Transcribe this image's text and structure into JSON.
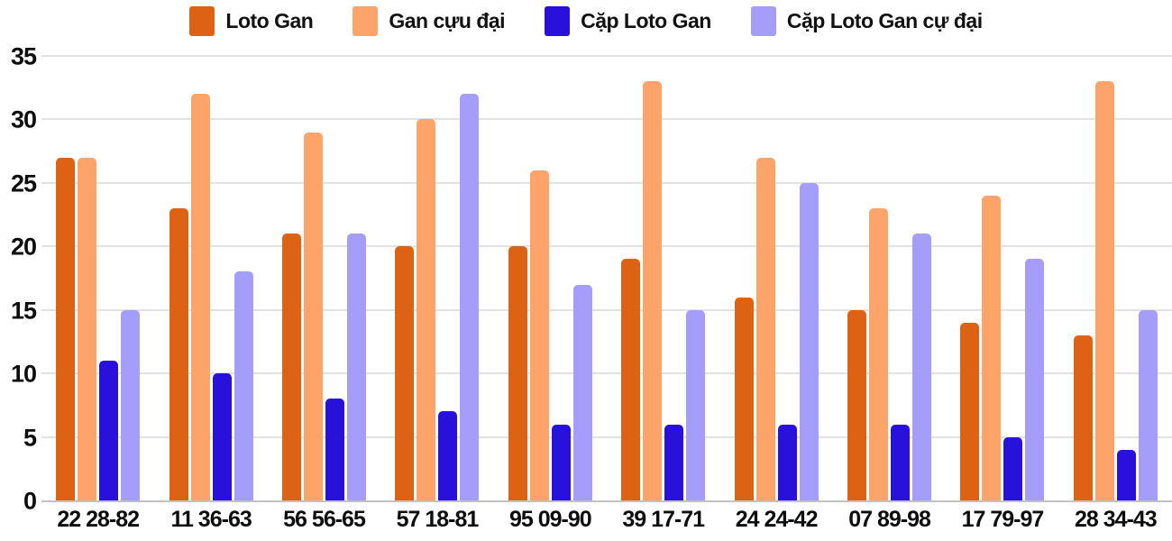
{
  "chart_data": {
    "type": "bar",
    "title": "",
    "xlabel": "",
    "ylabel": "",
    "categories": [
      "22 28-82",
      "11 36-63",
      "56 56-65",
      "57 18-81",
      "95 09-90",
      "39 17-71",
      "24 24-42",
      "07 89-98",
      "17 79-97",
      "28 34-43"
    ],
    "series": [
      {
        "key": "loto-gan",
        "name": "Loto Gan",
        "color": "#DE6213",
        "values": [
          27,
          23,
          21,
          20,
          20,
          19,
          16,
          15,
          14,
          13
        ]
      },
      {
        "key": "gan-cuu-dai",
        "name": "Gan cựu đại",
        "color": "#FDA46A",
        "values": [
          27,
          32,
          29,
          30,
          26,
          33,
          27,
          23,
          24,
          33
        ]
      },
      {
        "key": "cap-loto-gan",
        "name": "Cặp Loto Gan",
        "color": "#2711DB",
        "values": [
          11,
          10,
          8,
          7,
          6,
          6,
          6,
          6,
          5,
          4
        ]
      },
      {
        "key": "cap-loto-gan-cu-dai",
        "name": "Cặp Loto Gan cự đại",
        "color": "#A49DFA",
        "values": [
          15,
          18,
          21,
          32,
          17,
          15,
          25,
          21,
          19,
          15
        ]
      }
    ],
    "ylim": [
      0,
      35
    ],
    "yticks": [
      0,
      5,
      10,
      15,
      20,
      25,
      30,
      35
    ],
    "grid": true,
    "legend_position": "top"
  }
}
